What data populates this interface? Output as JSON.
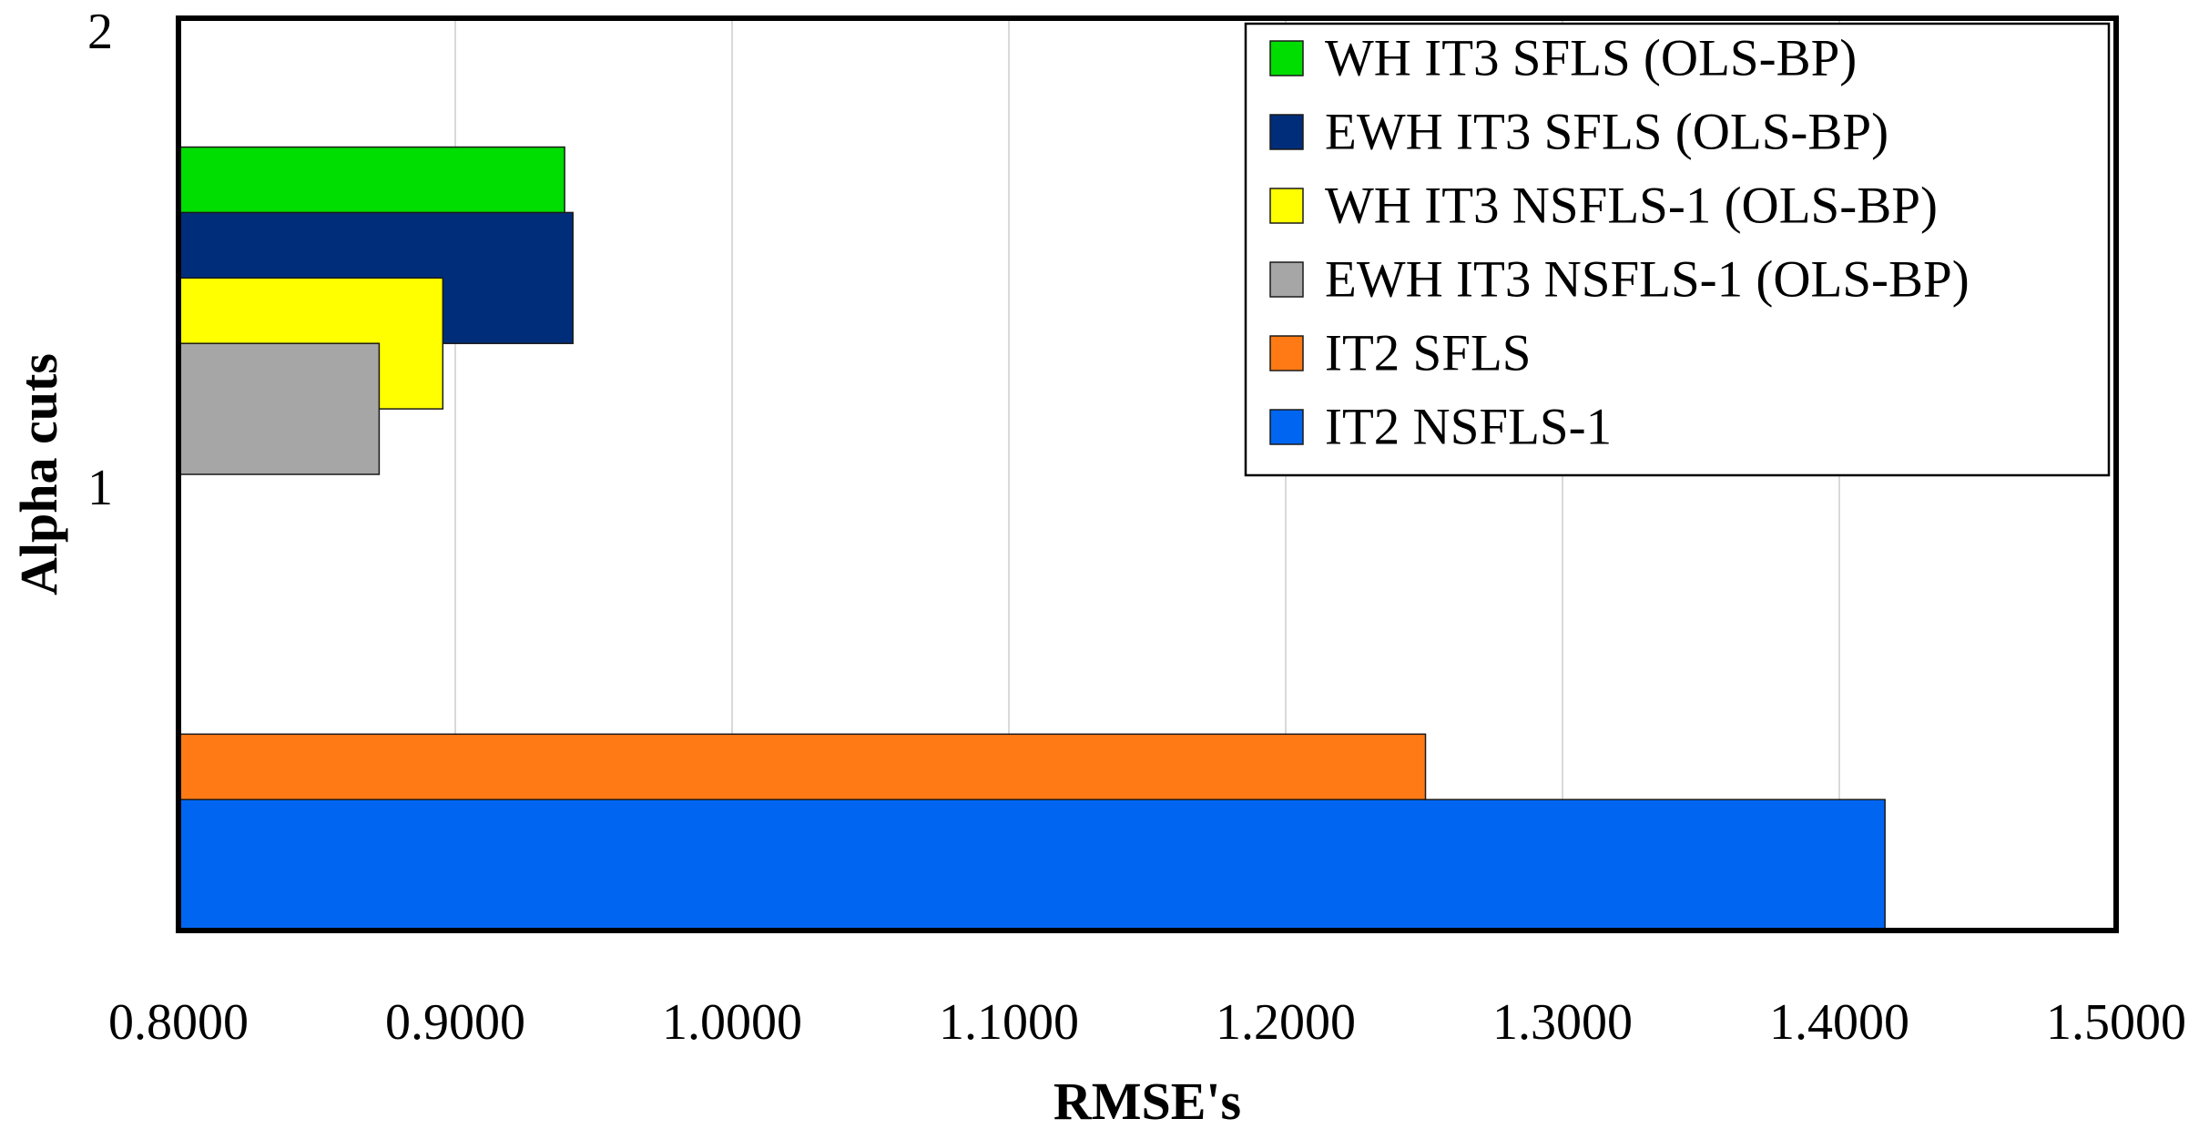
{
  "chart_data": {
    "type": "bar",
    "orientation": "horizontal",
    "title": "",
    "xlabel": "RMSE's",
    "ylabel": "Alpha cuts",
    "xlim": [
      0.8,
      1.5
    ],
    "x_ticks": [
      "0.8000",
      "0.9000",
      "1.0000",
      "1.1000",
      "1.2000",
      "1.3000",
      "1.4000",
      "1.5000"
    ],
    "categories": [
      "1",
      "2"
    ],
    "grid": "vertical",
    "legend_position": "top-right",
    "series": [
      {
        "name": "WH IT3 SFLS (OLS-BP)",
        "color": "#00dd00",
        "values": [
          null,
          0.9395
        ]
      },
      {
        "name": "EWH IT3 SFLS (OLS-BP)",
        "color": "#002d7a",
        "values": [
          null,
          0.9425
        ]
      },
      {
        "name": "WH IT3 NSFLS-1 (OLS-BP)",
        "color": "#ffff00",
        "values": [
          null,
          0.8955
        ]
      },
      {
        "name": "EWH IT3 NSFLS-1 (OLS-BP)",
        "color": "#a6a6a6",
        "values": [
          null,
          0.8725
        ]
      },
      {
        "name": "IT2 SFLS",
        "color": "#ff7a14",
        "values": [
          1.2505,
          null
        ]
      },
      {
        "name": "IT2 NSFLS-1",
        "color": "#0066f2",
        "values": [
          1.4165,
          null
        ]
      }
    ]
  }
}
